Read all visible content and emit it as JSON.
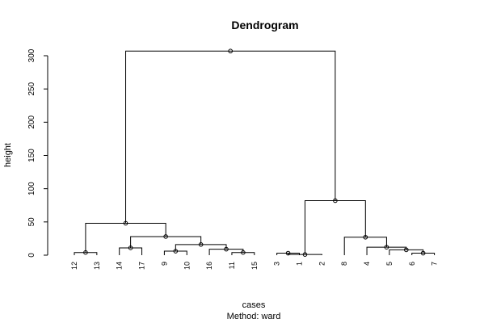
{
  "chart_data": {
    "type": "dendrogram",
    "title": "Dendrogram",
    "xlabel": "cases",
    "sublabel": "Method:  ward",
    "ylabel": "height",
    "ylim": [
      0,
      300
    ],
    "yticks": [
      0,
      50,
      100,
      150,
      200,
      250,
      300
    ],
    "leaves": [
      "12",
      "13",
      "14",
      "17",
      "9",
      "10",
      "16",
      "11",
      "15",
      "3",
      "1",
      "2",
      "8",
      "4",
      "5",
      "6",
      "7"
    ],
    "merges": [
      {
        "left": "3",
        "right": "1",
        "height": 3
      },
      {
        "left": "m1",
        "right": "2",
        "height": 1
      },
      {
        "left": "6",
        "right": "7",
        "height": 3
      },
      {
        "left": "5",
        "right": "m3",
        "height": 8
      },
      {
        "left": "4",
        "right": "m4",
        "height": 12
      },
      {
        "left": "8",
        "right": "m5",
        "height": 27
      },
      {
        "left": "m2",
        "right": "m6",
        "height": 82
      },
      {
        "left": "12",
        "right": "13",
        "height": 4
      },
      {
        "left": "14",
        "right": "17",
        "height": 11
      },
      {
        "left": "9",
        "right": "10",
        "height": 6
      },
      {
        "left": "11",
        "right": "15",
        "height": 4
      },
      {
        "left": "16",
        "right": "m11",
        "height": 9
      },
      {
        "left": "m10",
        "right": "m12",
        "height": 16
      },
      {
        "left": "m9",
        "right": "m13",
        "height": 28
      },
      {
        "left": "m8",
        "right": "m14",
        "height": 48
      },
      {
        "left": "m15",
        "right": "m7",
        "height": 307
      }
    ]
  }
}
